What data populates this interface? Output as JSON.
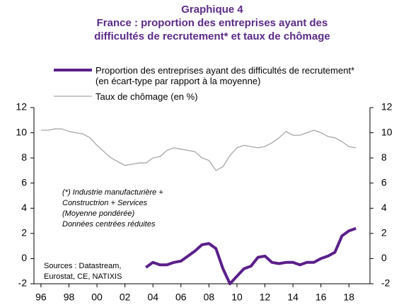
{
  "chart_data": {
    "type": "line",
    "title": [
      "Graphique 4",
      "France : proportion des entreprises ayant des",
      "difficultés de recrutement* et taux de chômage"
    ],
    "x": [
      1996,
      1996.5,
      1997,
      1997.5,
      1998,
      1998.5,
      1999,
      1999.5,
      2000,
      2000.5,
      2001,
      2001.5,
      2002,
      2002.5,
      2003,
      2003.5,
      2004,
      2004.5,
      2005,
      2005.5,
      2006,
      2006.5,
      2007,
      2007.5,
      2008,
      2008.5,
      2009,
      2009.5,
      2010,
      2010.5,
      2011,
      2011.5,
      2012,
      2012.5,
      2013,
      2013.5,
      2014,
      2014.5,
      2015,
      2015.5,
      2016,
      2016.5,
      2017,
      2017.5,
      2018,
      2018.5
    ],
    "series": [
      {
        "name": "Proportion des entreprises ayant des difficultés de recrutement* (en écart-type par rapport à la moyenne)",
        "color": "#5b1f8a",
        "width": 4,
        "values": [
          null,
          null,
          null,
          null,
          null,
          null,
          null,
          null,
          null,
          null,
          null,
          null,
          null,
          null,
          null,
          -0.7,
          -0.3,
          -0.5,
          -0.5,
          -0.3,
          -0.2,
          0.2,
          0.6,
          1.1,
          1.2,
          0.8,
          -0.8,
          -2.0,
          -1.4,
          -0.8,
          -0.6,
          0.1,
          0.2,
          -0.3,
          -0.4,
          -0.3,
          -0.3,
          -0.5,
          -0.3,
          -0.3,
          0.0,
          0.2,
          0.5,
          1.8,
          2.2,
          2.4
        ]
      },
      {
        "name": "Taux de chômage (en %)",
        "color": "#a6a6a6",
        "width": 1.3,
        "axis": "y2",
        "values": [
          10.2,
          10.2,
          10.3,
          10.3,
          10.1,
          10.0,
          9.9,
          9.6,
          9.0,
          8.5,
          8.0,
          7.7,
          7.4,
          7.5,
          7.6,
          7.6,
          8.0,
          8.1,
          8.6,
          8.8,
          8.7,
          8.6,
          8.5,
          8.0,
          7.8,
          7.0,
          7.3,
          8.2,
          8.8,
          9.0,
          8.9,
          8.8,
          8.9,
          9.2,
          9.6,
          10.1,
          9.8,
          9.8,
          10.0,
          10.2,
          10.0,
          9.7,
          9.6,
          9.3,
          8.9,
          8.8
        ]
      }
    ],
    "xlim": [
      1995.5,
      2019.5
    ],
    "xticks": [
      {
        "value": 1996,
        "label": "96"
      },
      {
        "value": 1998,
        "label": "98"
      },
      {
        "value": 2000,
        "label": "00"
      },
      {
        "value": 2002,
        "label": "02"
      },
      {
        "value": 2004,
        "label": "04"
      },
      {
        "value": 2006,
        "label": "06"
      },
      {
        "value": 2008,
        "label": "08"
      },
      {
        "value": 2010,
        "label": "10"
      },
      {
        "value": 2012,
        "label": "12"
      },
      {
        "value": 2014,
        "label": "14"
      },
      {
        "value": 2016,
        "label": "16"
      },
      {
        "value": 2018,
        "label": "18"
      }
    ],
    "ylim": [
      -2,
      12
    ],
    "yticks": [
      -2,
      0,
      2,
      4,
      6,
      8,
      10,
      12
    ],
    "y2lim": [
      -2,
      12
    ],
    "y2ticks": [
      -2,
      0,
      2,
      4,
      6,
      8,
      10,
      12
    ],
    "annotations": [
      "(*) Industrie manufacturière  +",
      "Constructrion + Services",
      " (Moyenne pondérée)",
      "Données centrées réduites"
    ],
    "sources": [
      "Sources : Datastream,",
      "Eurostat, CE, NATIXIS"
    ]
  }
}
